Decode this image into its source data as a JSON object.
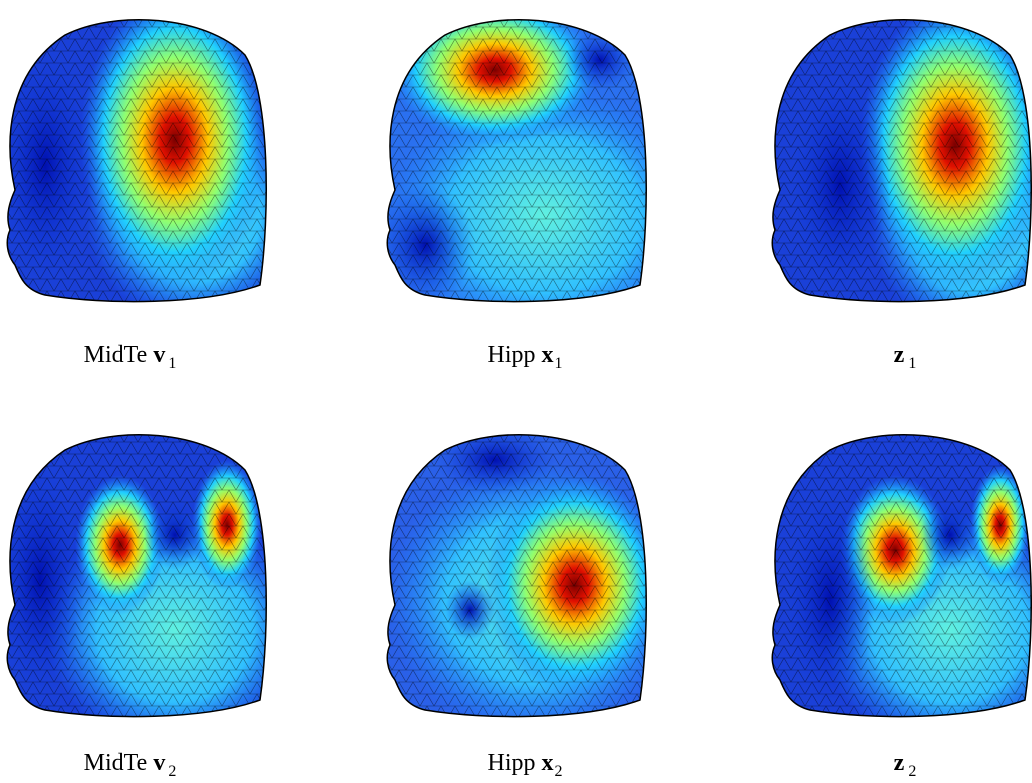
{
  "panels": [
    {
      "label": "MidTe",
      "symbol": "v",
      "subscript": "1"
    },
    {
      "label": "Hipp",
      "symbol": "x",
      "subscript": "1"
    },
    {
      "symbol": "z",
      "subscript": "1"
    },
    {
      "label": "MidTe",
      "symbol": "v",
      "subscript": "2"
    },
    {
      "label": "Hipp",
      "symbol": "x",
      "subscript": "2"
    },
    {
      "symbol": "z",
      "subscript": "2"
    }
  ]
}
